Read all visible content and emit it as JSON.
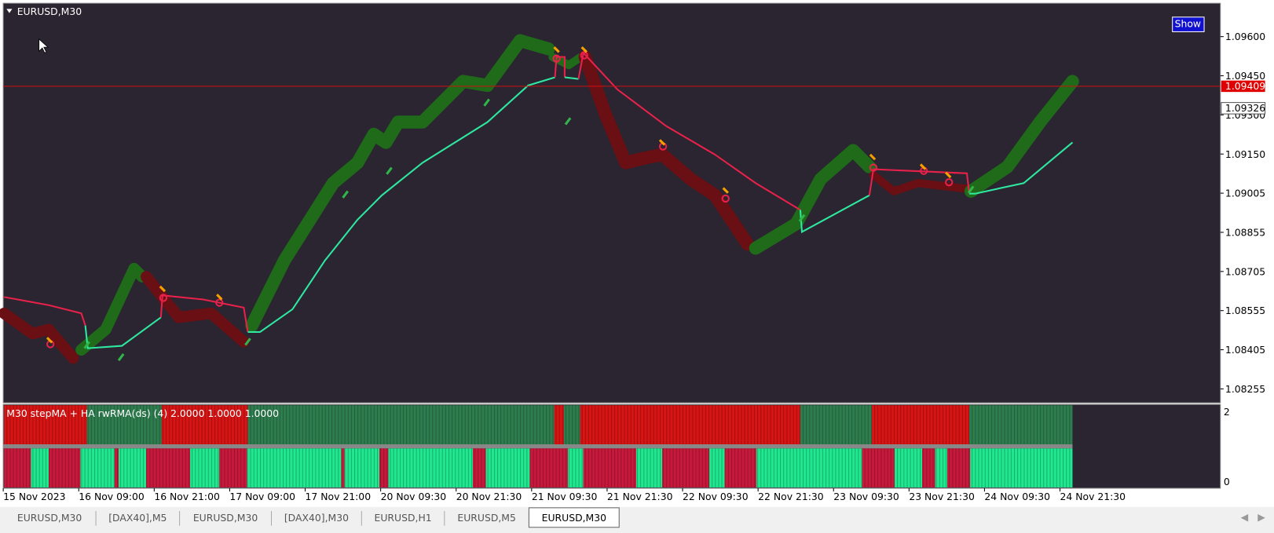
{
  "window": {
    "title": "EURUSD,M30",
    "button": "Show"
  },
  "price_axis": {
    "labels": [
      "1.09600",
      "1.09450",
      "1.09300",
      "1.09150",
      "1.09005",
      "1.08855",
      "1.08705",
      "1.08555",
      "1.08405",
      "1.08255"
    ],
    "bid_tag": "1.09409",
    "line_tag": "1.09326"
  },
  "indicator": {
    "label": "M30 stepMA + HA  rwRMA(ds) (4) 2.0000 1.0000 1.0000",
    "scale_top": "2",
    "scale_bottom": "0"
  },
  "time_axis": [
    "15 Nov 2023",
    "16 Nov 09:00",
    "16 Nov 21:00",
    "17 Nov 09:00",
    "17 Nov 21:00",
    "20 Nov 09:30",
    "20 Nov 21:30",
    "21 Nov 09:30",
    "21 Nov 21:30",
    "22 Nov 09:30",
    "22 Nov 21:30",
    "23 Nov 09:30",
    "23 Nov 21:30",
    "24 Nov 09:30",
    "24 Nov 21:30"
  ],
  "tabs": [
    "EURUSD,M30",
    "[DAX40],M5",
    "EURUSD,M30",
    "[DAX40],M30",
    "EURUSD,H1",
    "EURUSD,M5",
    "EURUSD,M30"
  ]
}
